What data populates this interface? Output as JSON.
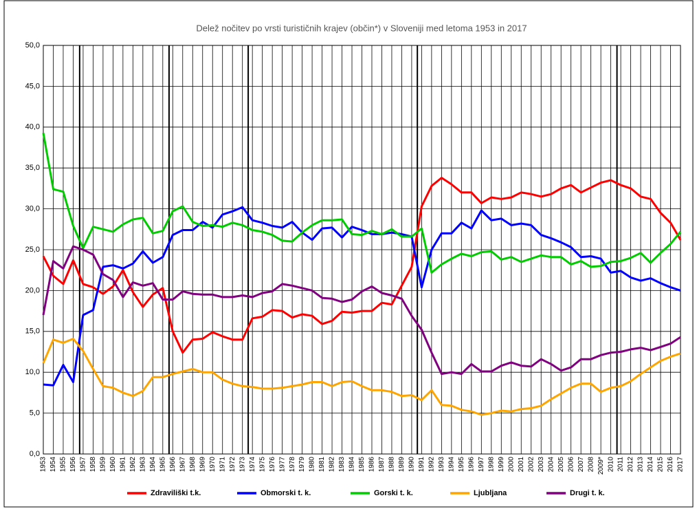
{
  "chart_data": {
    "type": "line",
    "title": "Delež nočitev po vrsti turističnih krajev (občin*) v Sloveniji med letoma 1953 in 2017",
    "categories": [
      "1953",
      "1954",
      "1955",
      "1956",
      "1957",
      "1958",
      "1959",
      "1960",
      "1961",
      "1962",
      "1963",
      "1964",
      "1965",
      "1966",
      "1967",
      "1968",
      "1969",
      "1970",
      "1971",
      "1972",
      "1973",
      "1974",
      "1975",
      "1976",
      "1977",
      "1978",
      "1979",
      "1980",
      "1981",
      "1982",
      "1983",
      "1984",
      "1985",
      "1986",
      "1987",
      "1988",
      "1989",
      "1990",
      "1991",
      "1992",
      "1993",
      "1994",
      "1995",
      "1996",
      "1997",
      "1998",
      "1999",
      "2000",
      "2001",
      "2002",
      "2003",
      "2004",
      "2005",
      "2006",
      "2007",
      "2008",
      "2009*",
      "2010",
      "2011",
      "2012",
      "2013",
      "2014",
      "2015",
      "2016",
      "2017"
    ],
    "series": [
      {
        "name": "Zdraviliški t.k.",
        "color": "#ff0000",
        "values": [
          24.2,
          21.8,
          20.8,
          23.7,
          20.8,
          20.4,
          19.6,
          20.5,
          22.5,
          19.8,
          18.0,
          19.5,
          20.3,
          15.0,
          12.4,
          14.0,
          14.1,
          14.9,
          14.4,
          14.0,
          14.0,
          16.6,
          16.8,
          17.6,
          17.5,
          16.7,
          17.1,
          16.9,
          15.9,
          16.3,
          17.4,
          17.3,
          17.5,
          17.5,
          18.5,
          18.3,
          20.6,
          22.9,
          30.3,
          32.8,
          33.8,
          33.0,
          32.0,
          32.0,
          30.7,
          31.4,
          31.2,
          31.4,
          32.0,
          31.8,
          31.5,
          31.8,
          32.5,
          32.9,
          32.0,
          32.6,
          33.2,
          33.5,
          32.9,
          32.5,
          31.5,
          31.2,
          29.5,
          28.3,
          26.2
        ]
      },
      {
        "name": "Obmorski t. k.",
        "color": "#0000ff",
        "values": [
          8.5,
          8.4,
          10.9,
          8.8,
          17.0,
          17.6,
          22.9,
          23.1,
          22.7,
          23.3,
          24.8,
          23.4,
          24.1,
          26.8,
          27.4,
          27.4,
          28.4,
          27.7,
          29.3,
          29.7,
          30.2,
          28.6,
          28.3,
          27.9,
          27.7,
          28.4,
          27.1,
          26.2,
          27.6,
          27.7,
          26.5,
          27.8,
          27.4,
          26.9,
          26.9,
          27.1,
          26.9,
          26.6,
          20.4,
          25.0,
          27.0,
          27.0,
          28.3,
          27.6,
          29.8,
          28.6,
          28.8,
          28.0,
          28.2,
          28.0,
          26.8,
          26.4,
          25.9,
          25.3,
          24.1,
          24.2,
          23.9,
          22.2,
          22.4,
          21.6,
          21.2,
          21.5,
          20.9,
          20.4,
          20.0
        ]
      },
      {
        "name": "Gorski t. k.",
        "color": "#00cc00",
        "values": [
          39.3,
          32.4,
          32.1,
          27.9,
          25.2,
          27.8,
          27.5,
          27.2,
          28.1,
          28.7,
          28.9,
          27.0,
          27.3,
          29.7,
          30.3,
          28.4,
          27.9,
          28.0,
          27.8,
          28.3,
          28.0,
          27.4,
          27.2,
          26.8,
          26.1,
          26.0,
          27.1,
          28.0,
          28.6,
          28.6,
          28.7,
          26.9,
          26.8,
          27.3,
          26.9,
          27.5,
          26.6,
          26.6,
          27.6,
          22.2,
          23.2,
          23.9,
          24.5,
          24.2,
          24.7,
          24.8,
          23.8,
          24.1,
          23.5,
          23.9,
          24.3,
          24.1,
          24.1,
          23.2,
          23.6,
          22.9,
          23.0,
          23.5,
          23.6,
          24.0,
          24.6,
          23.4,
          24.6,
          25.7,
          27.2
        ]
      },
      {
        "name": "Ljubljana",
        "color": "#ffa500",
        "values": [
          11.1,
          14.0,
          13.6,
          14.1,
          12.6,
          10.4,
          8.3,
          8.1,
          7.5,
          7.1,
          7.7,
          9.4,
          9.4,
          9.8,
          10.1,
          10.4,
          10.0,
          10.0,
          9.1,
          8.6,
          8.3,
          8.2,
          8.0,
          8.0,
          8.1,
          8.3,
          8.5,
          8.8,
          8.8,
          8.3,
          8.8,
          8.9,
          8.3,
          7.8,
          7.8,
          7.6,
          7.1,
          7.2,
          6.6,
          7.8,
          6.0,
          5.9,
          5.4,
          5.2,
          4.8,
          5.0,
          5.3,
          5.2,
          5.5,
          5.6,
          5.9,
          6.7,
          7.4,
          8.1,
          8.6,
          8.6,
          7.6,
          8.1,
          8.3,
          8.9,
          9.8,
          10.6,
          11.4,
          11.9,
          12.3
        ]
      },
      {
        "name": "Drugi t. k.",
        "color": "#800080",
        "values": [
          17.0,
          23.6,
          22.7,
          25.4,
          25.0,
          24.4,
          22.0,
          21.3,
          19.2,
          21.0,
          20.6,
          20.9,
          18.9,
          18.9,
          19.9,
          19.6,
          19.5,
          19.5,
          19.2,
          19.2,
          19.4,
          19.2,
          19.7,
          19.9,
          20.8,
          20.6,
          20.3,
          20.0,
          19.1,
          19.0,
          18.6,
          18.9,
          19.9,
          20.5,
          19.7,
          19.4,
          19.0,
          16.9,
          15.2,
          12.4,
          9.8,
          10.0,
          9.8,
          11.0,
          10.1,
          10.1,
          10.8,
          11.2,
          10.8,
          10.7,
          11.6,
          11.0,
          10.2,
          10.6,
          11.6,
          11.6,
          12.1,
          12.4,
          12.5,
          12.8,
          13.0,
          12.7,
          13.1,
          13.5,
          14.3
        ]
      }
    ],
    "ylim": [
      0,
      50
    ],
    "yticks": [
      {
        "value": 0,
        "label": "0,0"
      },
      {
        "value": 5,
        "label": "5,0"
      },
      {
        "value": 10,
        "label": "10,0"
      },
      {
        "value": 15,
        "label": "15,0"
      },
      {
        "value": 20,
        "label": "20,0"
      },
      {
        "value": 25,
        "label": "25,0"
      },
      {
        "value": 30,
        "label": "30,0"
      },
      {
        "value": 35,
        "label": "35,0"
      },
      {
        "value": 40,
        "label": "40,0"
      },
      {
        "value": 45,
        "label": "45,0"
      },
      {
        "value": 50,
        "label": "50,0"
      }
    ],
    "grid": true,
    "legend": "bottom"
  }
}
